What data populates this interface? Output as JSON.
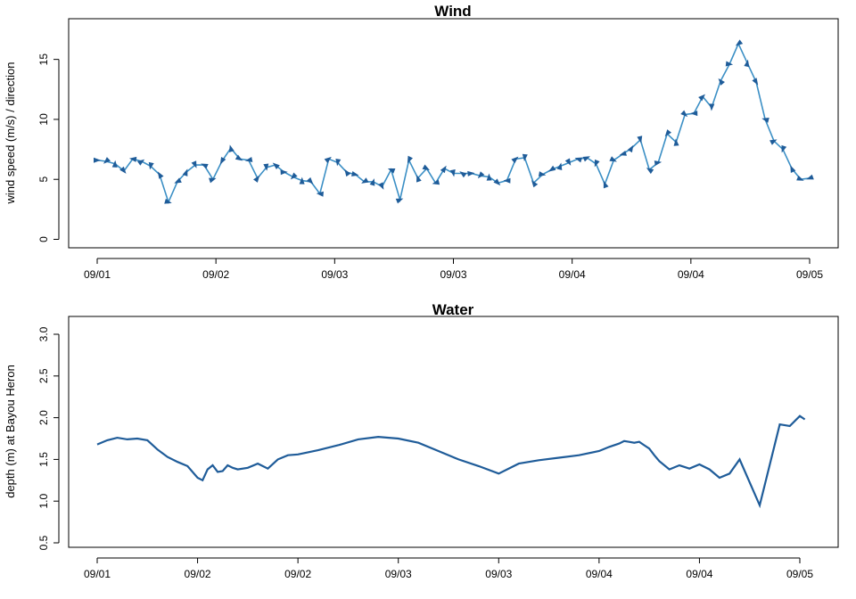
{
  "chart_data": [
    {
      "type": "line",
      "title": "Wind",
      "xlabel": "",
      "ylabel": "wind speed (m/s) / direction",
      "x_tick_labels": [
        "09/01",
        "09/02",
        "09/03",
        "09/03",
        "09/04",
        "09/04",
        "09/05"
      ],
      "xlim": [
        0,
        4
      ],
      "ylim": [
        0,
        18
      ],
      "yticks": [
        0,
        5,
        10,
        15
      ],
      "colors": {
        "line": "#3b8fc5",
        "arrow": "#1f5c99"
      },
      "series": [
        {
          "name": "wind speed",
          "x": [
            0.0,
            0.05,
            0.1,
            0.15,
            0.2,
            0.25,
            0.3,
            0.35,
            0.4,
            0.45,
            0.5,
            0.55,
            0.6,
            0.65,
            0.7,
            0.75,
            0.8,
            0.85,
            0.9,
            0.95,
            1.0,
            1.05,
            1.1,
            1.15,
            1.2,
            1.25,
            1.3,
            1.35,
            1.4,
            1.45,
            1.5,
            1.55,
            1.6,
            1.65,
            1.7,
            1.75,
            1.8,
            1.85,
            1.9,
            1.95,
            2.0,
            2.05,
            2.1,
            2.15,
            2.2,
            2.25,
            2.3,
            2.35,
            2.4,
            2.45,
            2.5,
            2.55,
            2.6,
            2.65,
            2.7,
            2.75,
            2.8,
            2.85,
            2.9,
            2.95,
            3.0,
            3.05,
            3.1,
            3.15,
            3.2,
            3.25,
            3.3,
            3.35,
            3.4,
            3.45,
            3.5,
            3.55,
            3.6,
            3.65,
            3.7,
            3.75,
            3.8,
            3.85,
            3.9,
            3.95,
            4.0
          ],
          "values": [
            6.6,
            6.5,
            6.3,
            5.7,
            6.7,
            6.5,
            6.1,
            5.4,
            3.1,
            4.8,
            5.6,
            6.2,
            6.2,
            5.0,
            6.5,
            7.6,
            6.7,
            6.6,
            5.1,
            6.0,
            6.2,
            5.6,
            5.2,
            4.9,
            4.8,
            3.8,
            6.7,
            6.4,
            5.6,
            5.4,
            4.8,
            4.8,
            4.4,
            5.8,
            3.3,
            6.6,
            5.1,
            5.9,
            4.7,
            5.9,
            5.5,
            5.5,
            5.5,
            5.3,
            5.2,
            4.7,
            4.9,
            6.7,
            6.8,
            4.7,
            5.4,
            5.8,
            6.1,
            6.4,
            6.7,
            6.8,
            6.3,
            4.6,
            6.6,
            7.1,
            7.6,
            8.3,
            5.8,
            6.4,
            8.8,
            8.1,
            10.4,
            10.5,
            11.9,
            11.0,
            13.2,
            14.6,
            16.3,
            14.7,
            13.1,
            10.0,
            8.2,
            7.5,
            5.9,
            5.0,
            5.1
          ]
        }
      ]
    },
    {
      "type": "line",
      "title": "Water",
      "xlabel": "",
      "ylabel": "depth (m) at Bayou Heron",
      "x_tick_labels": [
        "09/01",
        "09/02",
        "09/02",
        "09/03",
        "09/03",
        "09/04",
        "09/04",
        "09/05"
      ],
      "xlim": [
        0,
        7
      ],
      "ylim": [
        0.5,
        3.0
      ],
      "yticks": [
        0.5,
        1.0,
        1.5,
        2.0,
        2.5,
        3.0
      ],
      "colors": {
        "line": "#1f5c99"
      },
      "series": [
        {
          "name": "depth",
          "x": [
            0.0,
            0.1,
            0.2,
            0.3,
            0.4,
            0.5,
            0.6,
            0.7,
            0.8,
            0.9,
            1.0,
            1.05,
            1.1,
            1.15,
            1.2,
            1.25,
            1.3,
            1.35,
            1.4,
            1.5,
            1.6,
            1.7,
            1.8,
            1.9,
            2.0,
            2.2,
            2.4,
            2.6,
            2.8,
            3.0,
            3.2,
            3.4,
            3.6,
            3.8,
            4.0,
            4.2,
            4.4,
            4.6,
            4.8,
            5.0,
            5.1,
            5.2,
            5.25,
            5.3,
            5.35,
            5.4,
            5.45,
            5.5,
            5.55,
            5.6,
            5.7,
            5.8,
            5.9,
            6.0,
            6.1,
            6.2,
            6.3,
            6.4,
            6.6,
            6.8,
            6.9,
            7.0,
            7.05
          ],
          "values": [
            1.68,
            1.73,
            1.76,
            1.74,
            1.75,
            1.73,
            1.62,
            1.53,
            1.47,
            1.42,
            1.28,
            1.25,
            1.38,
            1.43,
            1.35,
            1.36,
            1.43,
            1.4,
            1.38,
            1.4,
            1.45,
            1.39,
            1.5,
            1.55,
            1.56,
            1.61,
            1.67,
            1.74,
            1.77,
            1.75,
            1.7,
            1.6,
            1.5,
            1.42,
            1.33,
            1.45,
            1.49,
            1.52,
            1.55,
            1.6,
            1.65,
            1.69,
            1.72,
            1.71,
            1.7,
            1.71,
            1.67,
            1.63,
            1.55,
            1.48,
            1.38,
            1.43,
            1.39,
            1.44,
            1.38,
            1.28,
            1.33,
            1.5,
            0.95,
            1.92,
            1.9,
            2.02,
            1.98
          ]
        }
      ]
    }
  ]
}
